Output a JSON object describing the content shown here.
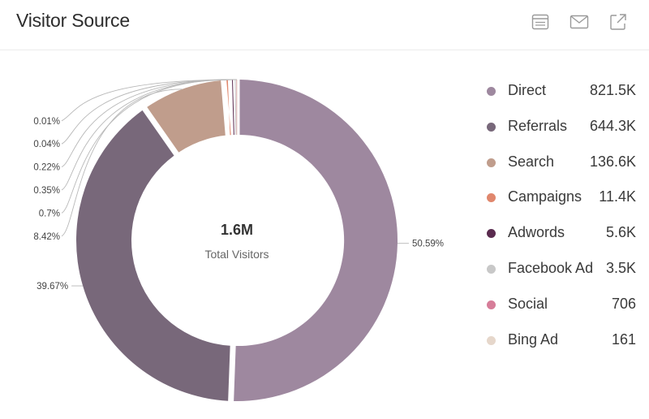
{
  "header": {
    "title": "Visitor Source",
    "icons": [
      "list-icon",
      "mail-icon",
      "export-icon"
    ]
  },
  "colors": {
    "Direct": "#9e889f",
    "Referrals": "#78687a",
    "Search": "#c09d8c",
    "Campaigns": "#e0876d",
    "Adwords": "#5a2b4f",
    "Facebook Ad": "#c8c8c8",
    "Social": "#d67d99",
    "Bing Ad": "#e6d7cb"
  },
  "chart_data": {
    "type": "pie",
    "variant": "donut",
    "center_value": "1.6M",
    "center_label": "Total Visitors",
    "categories": [
      "Direct",
      "Referrals",
      "Search",
      "Campaigns",
      "Adwords",
      "Facebook Ad",
      "Social",
      "Bing Ad"
    ],
    "values": [
      821500,
      644300,
      136600,
      11400,
      5600,
      3500,
      706,
      161
    ],
    "value_labels": [
      "821.5K",
      "644.3K",
      "136.6K",
      "11.4K",
      "5.6K",
      "3.5K",
      "706",
      "161"
    ],
    "percent_labels": [
      "50.59%",
      "39.67%",
      "8.42%",
      "0.7%",
      "0.35%",
      "0.22%",
      "0.04%",
      "0.01%"
    ],
    "legend": "right"
  }
}
